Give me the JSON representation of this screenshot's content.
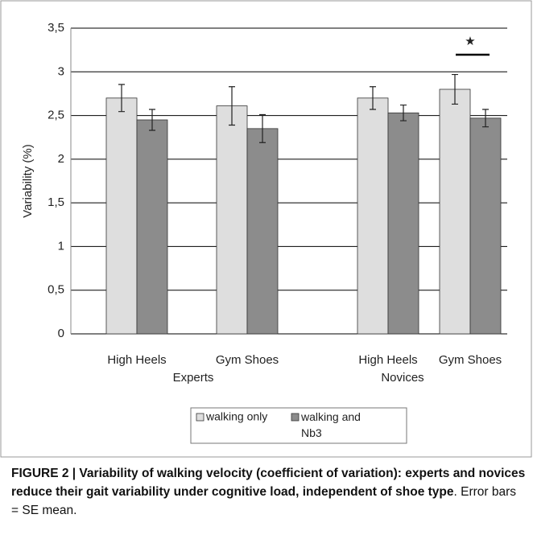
{
  "chart_data": {
    "type": "bar",
    "ylabel": "Variability (%)",
    "categories": [
      "High Heels",
      "Gym Shoes",
      "High Heels",
      "Gym Shoes"
    ],
    "group_labels": [
      "Experts",
      "Novices"
    ],
    "series": [
      {
        "name": "walking only",
        "color": "#dedede",
        "values": [
          2.7,
          2.61,
          2.7,
          2.8
        ],
        "errors": [
          0.155,
          0.22,
          0.13,
          0.17
        ]
      },
      {
        "name": "walking and Nb3",
        "color": "#8c8c8c",
        "values": [
          2.45,
          2.35,
          2.53,
          2.47
        ],
        "errors": [
          0.12,
          0.16,
          0.09,
          0.1
        ]
      }
    ],
    "ylim": [
      0,
      3.5
    ],
    "yticks": [
      0,
      {
        "value": 0.5,
        "label": "0,5"
      },
      1,
      {
        "value": 1.5,
        "label": "1,5"
      },
      2,
      {
        "value": 2.5,
        "label": "2,5"
      },
      3,
      {
        "value": 3.5,
        "label": "3,5"
      }
    ],
    "grid": true,
    "annotation": "★"
  },
  "caption": {
    "bold": "FIGURE 2 | Variability of walking velocity (coefficient of variation): experts and novices reduce their gait variability under cognitive load, independent of shoe type",
    "text": ". Error bars = SE mean."
  }
}
